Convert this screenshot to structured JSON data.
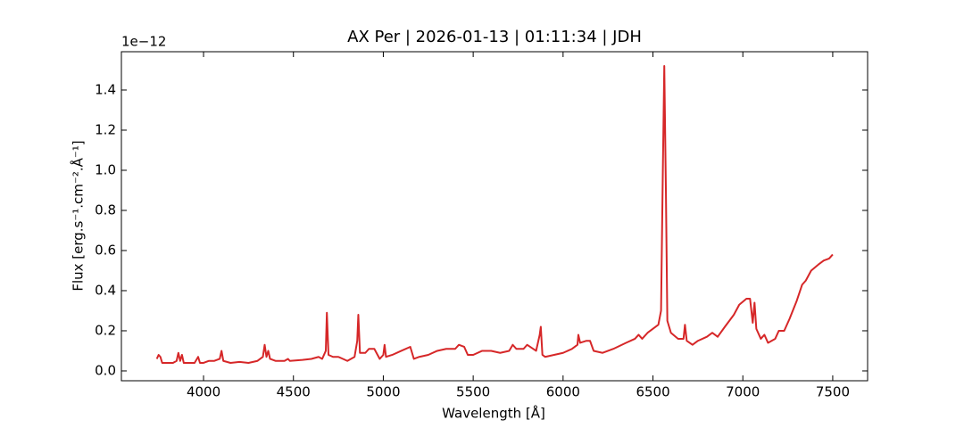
{
  "chart_data": {
    "type": "line",
    "title": "AX Per | 2026-01-13 | 01:11:34 | JDH",
    "x_label": "Wavelength [Å]",
    "y_label": "Flux [erg.s⁻¹.cm⁻².Å⁻¹]",
    "y_offset_label": "1e−12",
    "xlim": [
      3543,
      7694
    ],
    "ylim": [
      -0.049,
      1.591
    ],
    "xticks": [
      4000,
      4500,
      5000,
      5500,
      6000,
      6500,
      7000,
      7500
    ],
    "yticks": [
      {
        "value": 0,
        "label": "0.0"
      },
      0.2,
      0.4,
      0.6,
      0.8,
      {
        "value": 1,
        "label": "1.0"
      },
      1.2,
      1.4
    ],
    "series": [
      {
        "color": "#d62728",
        "x": [
          3740,
          3750,
          3760,
          3770,
          3800,
          3830,
          3850,
          3860,
          3870,
          3880,
          3890,
          3920,
          3950,
          3970,
          3980,
          4000,
          4030,
          4060,
          4090,
          4100,
          4110,
          4150,
          4200,
          4250,
          4300,
          4330,
          4340,
          4350,
          4360,
          4370,
          4400,
          4450,
          4470,
          4480,
          4550,
          4600,
          4640,
          4660,
          4680,
          4686,
          4695,
          4720,
          4750,
          4800,
          4840,
          4855,
          4861,
          4870,
          4900,
          4920,
          4950,
          4980,
          5000,
          5007,
          5015,
          5050,
          5100,
          5150,
          5170,
          5200,
          5250,
          5300,
          5350,
          5400,
          5420,
          5450,
          5470,
          5500,
          5550,
          5600,
          5650,
          5700,
          5720,
          5740,
          5780,
          5800,
          5850,
          5870,
          5876,
          5885,
          5900,
          5950,
          6000,
          6050,
          6080,
          6085,
          6095,
          6130,
          6150,
          6170,
          6220,
          6280,
          6350,
          6400,
          6420,
          6440,
          6470,
          6500,
          6530,
          6545,
          6555,
          6563,
          6572,
          6580,
          6600,
          6640,
          6670,
          6678,
          6688,
          6720,
          6750,
          6800,
          6830,
          6860,
          6900,
          6950,
          6980,
          7020,
          7040,
          7055,
          7065,
          7075,
          7100,
          7120,
          7140,
          7180,
          7200,
          7230,
          7260,
          7300,
          7330,
          7350,
          7380,
          7420,
          7450,
          7480,
          7500
        ],
        "values": [
          0.06,
          0.08,
          0.07,
          0.04,
          0.04,
          0.04,
          0.05,
          0.09,
          0.05,
          0.08,
          0.04,
          0.04,
          0.04,
          0.07,
          0.04,
          0.04,
          0.05,
          0.05,
          0.06,
          0.1,
          0.05,
          0.04,
          0.045,
          0.04,
          0.05,
          0.07,
          0.13,
          0.07,
          0.1,
          0.06,
          0.05,
          0.05,
          0.06,
          0.05,
          0.055,
          0.06,
          0.07,
          0.06,
          0.1,
          0.29,
          0.08,
          0.07,
          0.07,
          0.05,
          0.07,
          0.15,
          0.28,
          0.09,
          0.09,
          0.11,
          0.11,
          0.06,
          0.08,
          0.13,
          0.07,
          0.08,
          0.1,
          0.12,
          0.06,
          0.07,
          0.08,
          0.1,
          0.11,
          0.11,
          0.13,
          0.12,
          0.08,
          0.08,
          0.1,
          0.1,
          0.09,
          0.1,
          0.13,
          0.11,
          0.11,
          0.13,
          0.1,
          0.18,
          0.22,
          0.08,
          0.07,
          0.08,
          0.09,
          0.11,
          0.13,
          0.18,
          0.14,
          0.15,
          0.15,
          0.1,
          0.09,
          0.11,
          0.14,
          0.16,
          0.18,
          0.16,
          0.19,
          0.21,
          0.23,
          0.3,
          1.0,
          1.52,
          0.9,
          0.25,
          0.19,
          0.16,
          0.16,
          0.23,
          0.15,
          0.13,
          0.15,
          0.17,
          0.19,
          0.17,
          0.22,
          0.28,
          0.33,
          0.36,
          0.36,
          0.24,
          0.34,
          0.21,
          0.16,
          0.18,
          0.14,
          0.16,
          0.2,
          0.2,
          0.26,
          0.35,
          0.43,
          0.45,
          0.5,
          0.53,
          0.55,
          0.56,
          0.58
        ]
      }
    ]
  }
}
